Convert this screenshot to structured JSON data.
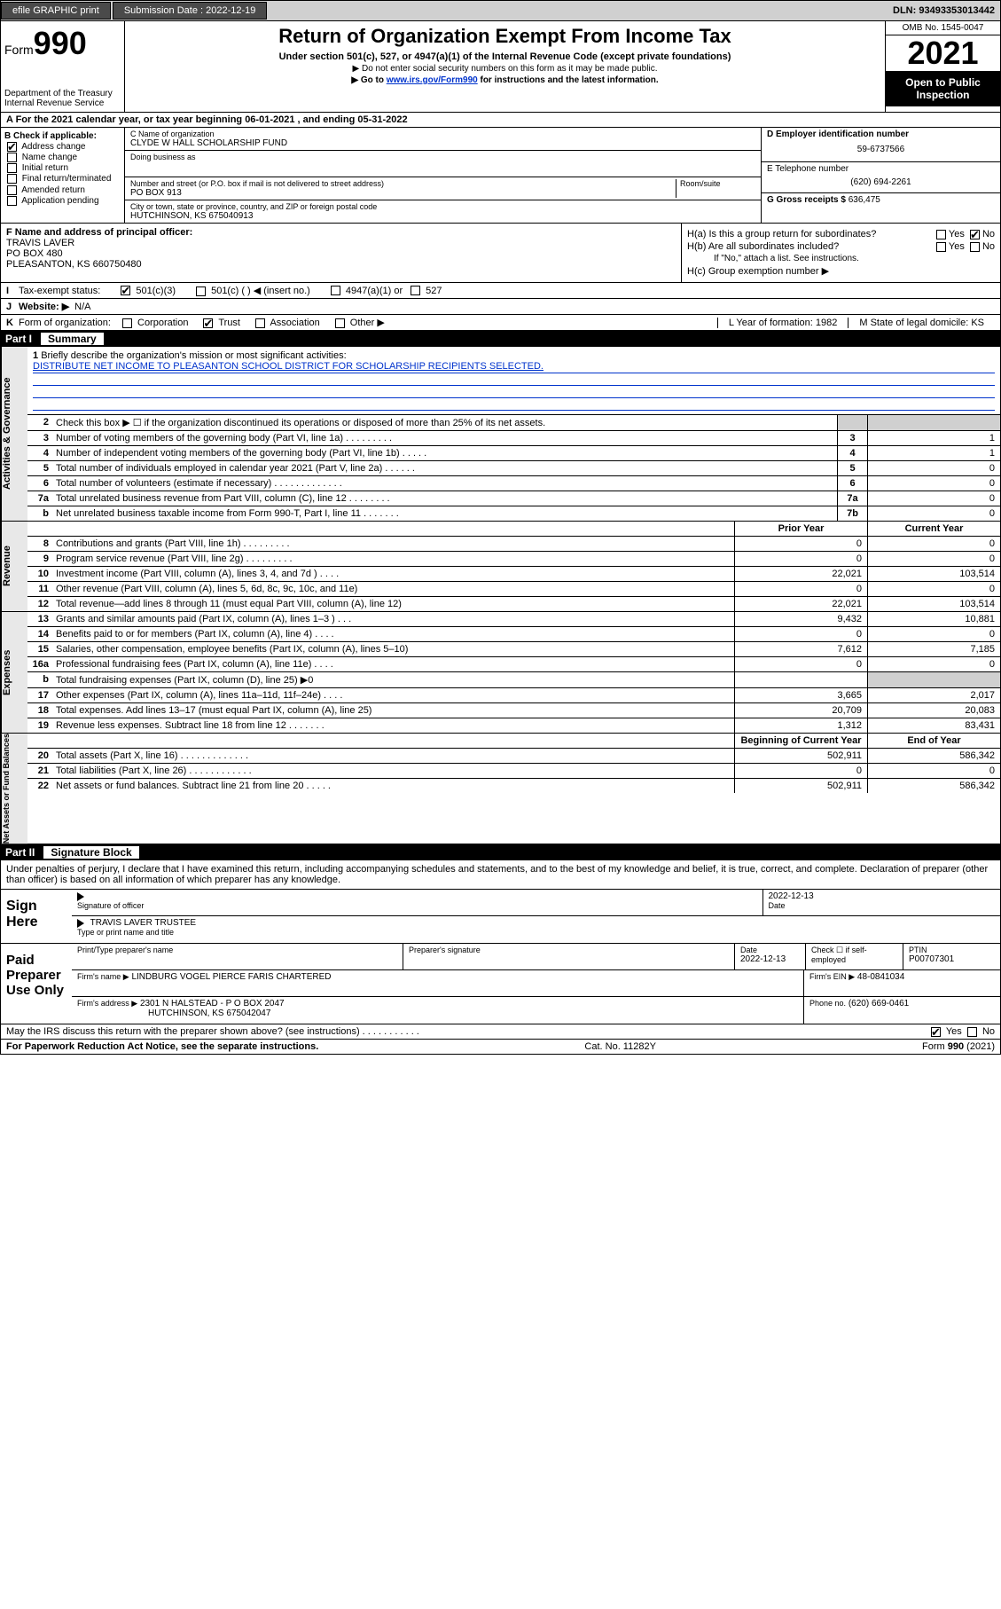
{
  "topbar": {
    "efile_label": "efile GRAPHIC print",
    "submission_label": "Submission Date : 2022-12-19",
    "dln": "DLN: 93493353013442"
  },
  "header": {
    "form_prefix": "Form",
    "form_number": "990",
    "dept": "Department of the Treasury",
    "irs": "Internal Revenue Service",
    "title": "Return of Organization Exempt From Income Tax",
    "subtitle": "Under section 501(c), 527, or 4947(a)(1) of the Internal Revenue Code (except private foundations)",
    "note1": "▶ Do not enter social security numbers on this form as it may be made public.",
    "note2_pre": "▶ Go to ",
    "note2_link": "www.irs.gov/Form990",
    "note2_post": " for instructions and the latest information.",
    "omb": "OMB No. 1545-0047",
    "year": "2021",
    "inspection": "Open to Public Inspection"
  },
  "line_a": "A For the 2021 calendar year, or tax year beginning 06-01-2021   , and ending 05-31-2022",
  "box_b": {
    "header": "B Check if applicable:",
    "items": [
      "Address change",
      "Name change",
      "Initial return",
      "Final return/terminated",
      "Amended return",
      "Application pending"
    ],
    "checked_idx": 0
  },
  "box_c": {
    "name_label": "C Name of organization",
    "name": "CLYDE W HALL SCHOLARSHIP FUND",
    "dba_label": "Doing business as",
    "dba": "",
    "addr_label": "Number and street (or P.O. box if mail is not delivered to street address)",
    "addr": "PO BOX 913",
    "room_label": "Room/suite",
    "city_label": "City or town, state or province, country, and ZIP or foreign postal code",
    "city": "HUTCHINSON, KS  675040913"
  },
  "box_d": {
    "label": "D Employer identification number",
    "value": "59-6737566"
  },
  "box_e": {
    "label": "E Telephone number",
    "value": "(620) 694-2261"
  },
  "box_g": {
    "label": "G Gross receipts $",
    "value": "636,475"
  },
  "box_f": {
    "label": "F Name and address of principal officer:",
    "name": "TRAVIS LAVER",
    "addr1": "PO BOX 480",
    "addr2": "PLEASANTON, KS  660750480"
  },
  "box_h": {
    "ha_label": "H(a)  Is this a group return for subordinates?",
    "hb_label": "H(b)  Are all subordinates included?",
    "hb_note": "If \"No,\" attach a list. See instructions.",
    "hc_label": "H(c)  Group exemption number ▶",
    "yes": "Yes",
    "no": "No"
  },
  "line_i": {
    "lbl": "I",
    "text": "Tax-exempt status:",
    "opt1": "501(c)(3)",
    "opt2": "501(c) (  ) ◀ (insert no.)",
    "opt3": "4947(a)(1) or",
    "opt4": "527"
  },
  "line_j": {
    "lbl": "J",
    "text": "Website: ▶",
    "value": "N/A"
  },
  "line_k": {
    "lbl": "K",
    "text": "Form of organization:",
    "opts": [
      "Corporation",
      "Trust",
      "Association",
      "Other ▶"
    ],
    "checked_idx": 1
  },
  "line_l": {
    "text": "L Year of formation: 1982"
  },
  "line_m": {
    "text": "M State of legal domicile: KS"
  },
  "part1": {
    "num": "Part I",
    "title": "Summary"
  },
  "mission": {
    "num": "1",
    "label": "Briefly describe the organization's mission or most significant activities:",
    "text": "DISTRIBUTE NET INCOME TO PLEASANTON SCHOOL DISTRICT FOR SCHOLARSHIP RECIPIENTS SELECTED."
  },
  "governance_lines": [
    {
      "num": "2",
      "desc": "Check this box ▶ ☐  if the organization discontinued its operations or disposed of more than 25% of its net assets.",
      "box": "",
      "val": ""
    },
    {
      "num": "3",
      "desc": "Number of voting members of the governing body (Part VI, line 1a)   .   .   .   .   .   .   .   .   .",
      "box": "3",
      "val": "1"
    },
    {
      "num": "4",
      "desc": "Number of independent voting members of the governing body (Part VI, line 1b)  .   .   .   .   .",
      "box": "4",
      "val": "1"
    },
    {
      "num": "5",
      "desc": "Total number of individuals employed in calendar year 2021 (Part V, line 2a)   .   .   .   .   .   .",
      "box": "5",
      "val": "0"
    },
    {
      "num": "6",
      "desc": "Total number of volunteers (estimate if necessary)   .   .   .   .   .   .   .   .   .   .   .   .   .",
      "box": "6",
      "val": "0"
    },
    {
      "num": "7a",
      "desc": "Total unrelated business revenue from Part VIII, column (C), line 12  .   .   .   .   .   .   .   .",
      "box": "7a",
      "val": "0"
    },
    {
      "num": "b",
      "desc": "Net unrelated business taxable income from Form 990-T, Part I, line 11   .   .   .   .   .   .   .",
      "box": "7b",
      "val": "0"
    }
  ],
  "col_headers": {
    "prior": "Prior Year",
    "current": "Current Year"
  },
  "revenue_lines": [
    {
      "num": "8",
      "desc": "Contributions and grants (Part VIII, line 1h)  .   .   .   .   .   .   .   .   .",
      "prior": "0",
      "val": "0"
    },
    {
      "num": "9",
      "desc": "Program service revenue (Part VIII, line 2g)  .   .   .   .   .   .   .   .   .",
      "prior": "0",
      "val": "0"
    },
    {
      "num": "10",
      "desc": "Investment income (Part VIII, column (A), lines 3, 4, and 7d )  .   .   .   .",
      "prior": "22,021",
      "val": "103,514"
    },
    {
      "num": "11",
      "desc": "Other revenue (Part VIII, column (A), lines 5, 6d, 8c, 9c, 10c, and 11e)",
      "prior": "0",
      "val": "0"
    },
    {
      "num": "12",
      "desc": "Total revenue—add lines 8 through 11 (must equal Part VIII, column (A), line 12)",
      "prior": "22,021",
      "val": "103,514"
    }
  ],
  "expense_lines": [
    {
      "num": "13",
      "desc": "Grants and similar amounts paid (Part IX, column (A), lines 1–3 )   .   .   .",
      "prior": "9,432",
      "val": "10,881"
    },
    {
      "num": "14",
      "desc": "Benefits paid to or for members (Part IX, column (A), line 4)  .   .   .   .",
      "prior": "0",
      "val": "0"
    },
    {
      "num": "15",
      "desc": "Salaries, other compensation, employee benefits (Part IX, column (A), lines 5–10)",
      "prior": "7,612",
      "val": "7,185"
    },
    {
      "num": "16a",
      "desc": "Professional fundraising fees (Part IX, column (A), line 11e)  .   .   .   .",
      "prior": "0",
      "val": "0"
    },
    {
      "num": "b",
      "desc": "Total fundraising expenses (Part IX, column (D), line 25) ▶0",
      "prior": "",
      "val": "",
      "shade": true
    },
    {
      "num": "17",
      "desc": "Other expenses (Part IX, column (A), lines 11a–11d, 11f–24e)  .   .   .   .",
      "prior": "3,665",
      "val": "2,017"
    },
    {
      "num": "18",
      "desc": "Total expenses. Add lines 13–17 (must equal Part IX, column (A), line 25)",
      "prior": "20,709",
      "val": "20,083"
    },
    {
      "num": "19",
      "desc": "Revenue less expenses. Subtract line 18 from line 12  .   .   .   .   .   .   .",
      "prior": "1,312",
      "val": "83,431"
    }
  ],
  "net_headers": {
    "prior": "Beginning of Current Year",
    "current": "End of Year"
  },
  "net_lines": [
    {
      "num": "20",
      "desc": "Total assets (Part X, line 16)  .   .   .   .   .   .   .   .   .   .   .   .   .",
      "prior": "502,911",
      "val": "586,342"
    },
    {
      "num": "21",
      "desc": "Total liabilities (Part X, line 26)  .   .   .   .   .   .   .   .   .   .   .   .",
      "prior": "0",
      "val": "0"
    },
    {
      "num": "22",
      "desc": "Net assets or fund balances. Subtract line 21 from line 20  .   .   .   .   .",
      "prior": "502,911",
      "val": "586,342"
    }
  ],
  "vtabs": {
    "gov": "Activities & Governance",
    "rev": "Revenue",
    "exp": "Expenses",
    "net": "Net Assets or Fund Balances"
  },
  "part2": {
    "num": "Part II",
    "title": "Signature Block"
  },
  "sig_intro": "Under penalties of perjury, I declare that I have examined this return, including accompanying schedules and statements, and to the best of my knowledge and belief, it is true, correct, and complete. Declaration of preparer (other than officer) is based on all information of which preparer has any knowledge.",
  "sign_here": {
    "label": "Sign Here",
    "officer_sig": "Signature of officer",
    "date_label": "Date",
    "date": "2022-12-13",
    "name": "TRAVIS LAVER  TRUSTEE",
    "name_label": "Type or print name and title"
  },
  "paid_prep": {
    "label": "Paid Preparer Use Only",
    "col_name": "Print/Type preparer's name",
    "col_sig": "Preparer's signature",
    "col_date": "Date",
    "date": "2022-12-13",
    "check_label": "Check ☐ if self-employed",
    "ptin_label": "PTIN",
    "ptin": "P00707301",
    "firm_name_label": "Firm's name    ▶",
    "firm_name": "LINDBURG VOGEL PIERCE FARIS CHARTERED",
    "firm_ein_label": "Firm's EIN ▶",
    "firm_ein": "48-0841034",
    "firm_addr_label": "Firm's address ▶",
    "firm_addr1": "2301 N HALSTEAD - P O BOX 2047",
    "firm_addr2": "HUTCHINSON, KS  675042047",
    "phone_label": "Phone no.",
    "phone": "(620) 669-0461"
  },
  "discuss": {
    "text": "May the IRS discuss this return with the preparer shown above? (see instructions)   .   .   .   .   .   .   .   .   .   .   .",
    "yes": "Yes",
    "no": "No"
  },
  "footer": {
    "left": "For Paperwork Reduction Act Notice, see the separate instructions.",
    "mid": "Cat. No. 11282Y",
    "right": "Form 990 (2021)"
  }
}
